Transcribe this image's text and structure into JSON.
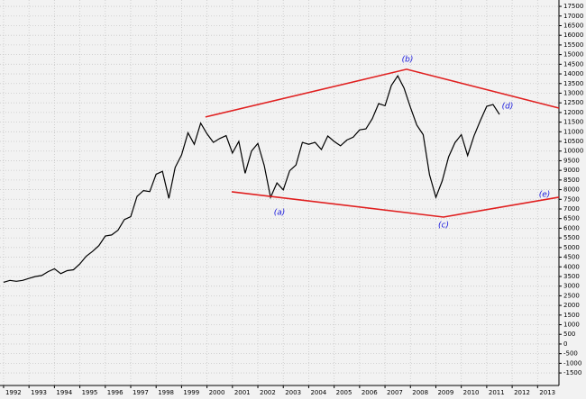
{
  "chart_data": {
    "type": "line",
    "xlim": [
      1991.86,
      2013.84
    ],
    "ylim": [
      -2150,
      17830
    ],
    "xticks": [
      1992,
      1993,
      1994,
      1995,
      1996,
      1997,
      1998,
      1999,
      2000,
      2001,
      2002,
      2003,
      2004,
      2005,
      2006,
      2007,
      2008,
      2009,
      2010,
      2011,
      2012,
      2013
    ],
    "yticks": [
      -1500,
      -1000,
      -500,
      0,
      500,
      1000,
      1500,
      2000,
      2500,
      3000,
      3500,
      4000,
      4500,
      5000,
      5500,
      6000,
      6500,
      7000,
      7500,
      8000,
      8500,
      9000,
      9500,
      10000,
      10500,
      11000,
      11500,
      12000,
      12500,
      13000,
      13500,
      14000,
      14500,
      15000,
      15500,
      16000,
      16500,
      17000,
      17500
    ],
    "grid": true,
    "color": "#000000",
    "x": [
      1992,
      1992.25,
      1992.5,
      1992.75,
      1993,
      1993.25,
      1993.5,
      1993.75,
      1994,
      1994.25,
      1994.5,
      1994.75,
      1995,
      1995.25,
      1995.5,
      1995.75,
      1996,
      1996.25,
      1996.5,
      1996.75,
      1997,
      1997.25,
      1997.5,
      1997.75,
      1998,
      1998.25,
      1998.5,
      1998.75,
      1999,
      1999.25,
      1999.5,
      1999.75,
      2000,
      2000.25,
      2000.5,
      2000.75,
      2001,
      2001.25,
      2001.5,
      2001.75,
      2002,
      2002.25,
      2002.5,
      2002.75,
      2003,
      2003.25,
      2003.5,
      2003.75,
      2004,
      2004.25,
      2004.5,
      2004.75,
      2005,
      2005.25,
      2005.5,
      2005.75,
      2006,
      2006.25,
      2006.5,
      2006.75,
      2007,
      2007.25,
      2007.5,
      2007.75,
      2008,
      2008.25,
      2008.5,
      2008.75,
      2009,
      2009.25,
      2009.5,
      2009.75,
      2010,
      2010.25,
      2010.5,
      2010.75,
      2011,
      2011.25,
      2011.5
    ],
    "values": [
      3200,
      3300,
      3250,
      3300,
      3400,
      3500,
      3550,
      3750,
      3900,
      3650,
      3800,
      3850,
      4150,
      4550,
      4800,
      5100,
      5600,
      5650,
      5900,
      6450,
      6600,
      7650,
      7950,
      7900,
      8800,
      8950,
      7550,
      9150,
      9800,
      10950,
      10350,
      11450,
      10900,
      10450,
      10650,
      10800,
      9900,
      10500,
      8850,
      10000,
      10400,
      9250,
      7600,
      8350,
      7990,
      8980,
      9280,
      10450,
      10350,
      10450,
      10080,
      10780,
      10500,
      10270,
      10570,
      10720,
      11100,
      11150,
      11680,
      12460,
      12350,
      13400,
      13900,
      13260,
      12260,
      11350,
      10850,
      8780,
      7600,
      8450,
      9700,
      10430,
      10850,
      9770,
      10790,
      11580,
      12320,
      12410,
      11900
    ],
    "trendlines": [
      {
        "color": "#e02020",
        "x": [
          1999.94,
          2007.85,
          2013.84
        ],
        "values": [
          11765,
          14240,
          12230
        ]
      },
      {
        "color": "#e02020",
        "x": [
          2000.97,
          2009.3,
          2013.84
        ],
        "values": [
          7890,
          6580,
          7610
        ]
      }
    ],
    "annotations": [
      "(a)",
      "(b)",
      "(c)",
      "(d)",
      "(e)"
    ]
  }
}
